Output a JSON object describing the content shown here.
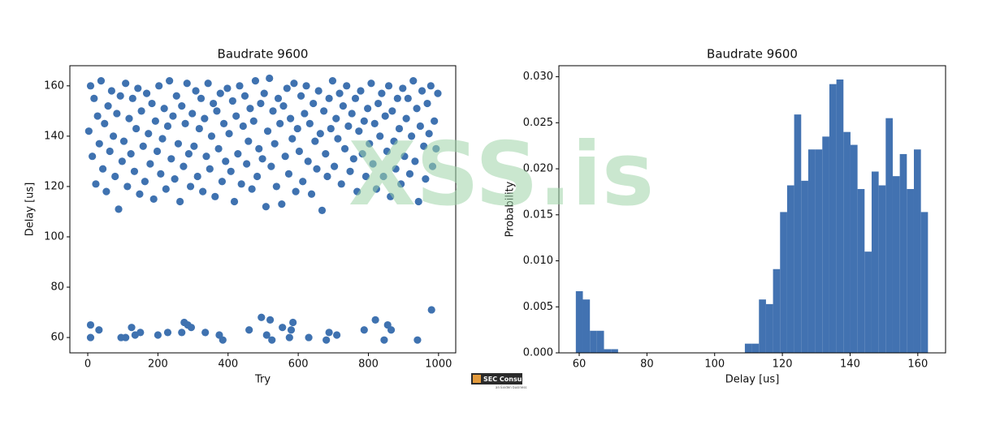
{
  "chart_data": [
    {
      "type": "scatter",
      "title": "Baudrate 9600",
      "x_label": "Try",
      "y_label": "Delay [us]",
      "color": "#3f72b0",
      "xlim": [
        -51,
        1049
      ],
      "ylim": [
        53.9,
        168
      ],
      "xticks": [
        0,
        200,
        400,
        600,
        800,
        1000
      ],
      "yticks": [
        60,
        80,
        100,
        120,
        140,
        160
      ],
      "x": [
        3,
        8,
        13,
        18,
        23,
        28,
        33,
        38,
        43,
        48,
        53,
        58,
        63,
        68,
        73,
        78,
        83,
        88,
        93,
        98,
        103,
        108,
        113,
        118,
        123,
        128,
        133,
        138,
        143,
        148,
        153,
        158,
        163,
        168,
        173,
        178,
        183,
        188,
        193,
        198,
        203,
        208,
        213,
        218,
        223,
        228,
        233,
        238,
        243,
        248,
        253,
        258,
        263,
        268,
        273,
        278,
        283,
        288,
        293,
        298,
        303,
        308,
        313,
        318,
        323,
        328,
        333,
        338,
        343,
        348,
        353,
        358,
        363,
        368,
        373,
        378,
        383,
        388,
        393,
        398,
        403,
        408,
        413,
        418,
        423,
        428,
        433,
        438,
        443,
        448,
        453,
        458,
        463,
        468,
        473,
        478,
        483,
        488,
        493,
        498,
        503,
        508,
        513,
        518,
        523,
        528,
        533,
        538,
        543,
        548,
        553,
        558,
        563,
        568,
        573,
        578,
        583,
        588,
        593,
        598,
        603,
        608,
        613,
        618,
        623,
        628,
        633,
        638,
        643,
        648,
        653,
        658,
        663,
        668,
        673,
        678,
        683,
        688,
        693,
        698,
        703,
        708,
        713,
        718,
        723,
        728,
        733,
        738,
        743,
        748,
        753,
        758,
        763,
        768,
        773,
        778,
        783,
        788,
        793,
        798,
        803,
        808,
        813,
        818,
        823,
        828,
        833,
        838,
        843,
        848,
        853,
        858,
        863,
        868,
        873,
        878,
        883,
        888,
        893,
        898,
        903,
        908,
        913,
        918,
        923,
        928,
        933,
        938,
        943,
        948,
        953,
        958,
        963,
        968,
        973,
        978,
        983,
        988,
        993,
        998,
        8,
        8,
        32,
        95,
        108,
        125,
        135,
        150,
        200,
        228,
        268,
        275,
        285,
        295,
        335,
        375,
        385,
        460,
        495,
        510,
        520,
        525,
        555,
        575,
        580,
        585,
        630,
        680,
        688,
        710,
        788,
        820,
        845,
        855,
        865,
        940,
        980
      ],
      "values": [
        142,
        160,
        132,
        155,
        121,
        148,
        137,
        162,
        127,
        145,
        118,
        152,
        134,
        158,
        140,
        124,
        149,
        111,
        156,
        130,
        138,
        161,
        120,
        147,
        133,
        155,
        126,
        143,
        159,
        117,
        150,
        136,
        122,
        157,
        141,
        129,
        153,
        115,
        146,
        134,
        160,
        125,
        139,
        151,
        119,
        144,
        162,
        131,
        148,
        123,
        156,
        137,
        114,
        152,
        128,
        145,
        161,
        133,
        120,
        149,
        136,
        158,
        124,
        143,
        155,
        118,
        147,
        132,
        161,
        127,
        140,
        153,
        116,
        150,
        135,
        157,
        122,
        145,
        130,
        159,
        141,
        126,
        154,
        114,
        148,
        133,
        160,
        121,
        144,
        156,
        129,
        138,
        151,
        119,
        146,
        162,
        124,
        135,
        153,
        131,
        157,
        112,
        142,
        163,
        128,
        150,
        137,
        120,
        155,
        145,
        113,
        152,
        132,
        159,
        125,
        147,
        139,
        161,
        118,
        143,
        134,
        156,
        122,
        149,
        160,
        130,
        145,
        117,
        153,
        138,
        127,
        158,
        141,
        110.5,
        150,
        133,
        124,
        155,
        143,
        162,
        128,
        147,
        139,
        157,
        121,
        152,
        135,
        160,
        144,
        126,
        149,
        131,
        155,
        118,
        142,
        158,
        133,
        146,
        124,
        151,
        137,
        161,
        129,
        145,
        119,
        153,
        140,
        157,
        124,
        148,
        134,
        160,
        116,
        150,
        138,
        127,
        155,
        143,
        121,
        159,
        132,
        147,
        155,
        125,
        140,
        162,
        130,
        151,
        114,
        144,
        158,
        136,
        123,
        153,
        141,
        160,
        128,
        146,
        135,
        157,
        65,
        60,
        63,
        60,
        60,
        64,
        61,
        62,
        61,
        62,
        62,
        66,
        65,
        64,
        62,
        61,
        59,
        63,
        68,
        61,
        67,
        59,
        64,
        60,
        63,
        66,
        60,
        59,
        62,
        61,
        63,
        67,
        59,
        65,
        63,
        59,
        71
      ]
    },
    {
      "type": "histogram",
      "title": "Baudrate 9600",
      "x_label": "Delay [us]",
      "y_label": "Probability",
      "color": "#4272b1",
      "xlim": [
        54,
        168.2
      ],
      "ylim": [
        0,
        0.0312
      ],
      "xticks": [
        60,
        80,
        100,
        120,
        140,
        160
      ],
      "yticks": [
        {
          "value": 0,
          "label": "0.000"
        },
        {
          "value": 0.005,
          "label": "0.005"
        },
        {
          "value": 0.01,
          "label": "0.010"
        },
        {
          "value": 0.015,
          "label": "0.015"
        },
        {
          "value": 0.02,
          "label": "0.020"
        },
        {
          "value": 0.025,
          "label": "0.025"
        },
        {
          "value": 0.03,
          "label": "0.030"
        }
      ],
      "bins": [
        59,
        61.08,
        63.16,
        65.24,
        67.32,
        69.4,
        71.48,
        73.56,
        75.64,
        77.72,
        79.8,
        81.88,
        83.96,
        86.04,
        88.12,
        90.2,
        92.28,
        94.36,
        96.44,
        98.52,
        100.6,
        102.68,
        104.76,
        106.84,
        108.92,
        111,
        113.08,
        115.16,
        117.24,
        119.32,
        121.4,
        123.48,
        125.56,
        127.64,
        129.72,
        131.8,
        133.88,
        135.96,
        138.04,
        140.12,
        142.2,
        144.28,
        146.36,
        148.44,
        150.52,
        152.6,
        154.68,
        156.76,
        158.84,
        160.92,
        163
      ],
      "values": [
        0.0067,
        0.0058,
        0.0024,
        0.0024,
        0.0004,
        0.0004,
        0,
        0,
        0,
        0,
        0,
        0,
        0,
        0,
        0,
        0,
        0,
        0,
        0,
        0,
        0,
        0,
        0,
        0,
        0.001,
        0.001,
        0.0058,
        0.0053,
        0.0091,
        0.0153,
        0.0182,
        0.0259,
        0.0187,
        0.0221,
        0.0221,
        0.0235,
        0.0292,
        0.0297,
        0.024,
        0.0226,
        0.0178,
        0.011,
        0.0197,
        0.0182,
        0.0255,
        0.0192,
        0.0216,
        0.0178,
        0.0221,
        0.0153
      ]
    }
  ],
  "watermark": "XSS.is",
  "logo": {
    "name": "SEC Consult",
    "tagline": "an Eviden business"
  }
}
